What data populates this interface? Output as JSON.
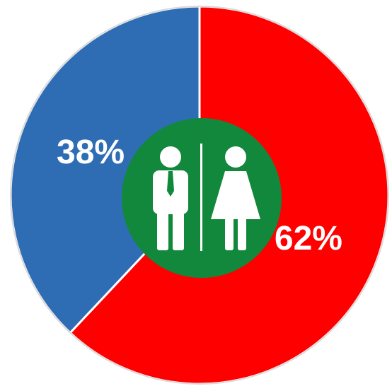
{
  "chart_data": {
    "type": "pie",
    "slices": [
      {
        "label": "62%",
        "value": 62,
        "color": "#FF0000",
        "icon": "woman-icon"
      },
      {
        "label": "38%",
        "value": 38,
        "color": "#2E6DB4",
        "icon": "man-icon"
      }
    ],
    "legend": "none",
    "center_badge": {
      "color": "#11883B",
      "icons": [
        "man-icon",
        "woman-icon"
      ]
    }
  }
}
